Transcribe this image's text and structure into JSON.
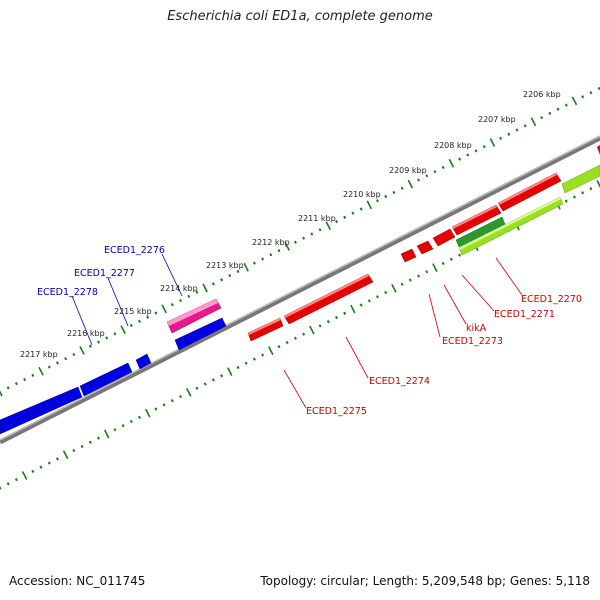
{
  "title": "Escherichia coli ED1a, complete genome",
  "footer": {
    "accession": "Accession: NC_011745",
    "summary": "Topology: circular; Length: 5,209,548 bp; Genes: 5,118"
  },
  "colors": {
    "backbone": "#888888",
    "tick": "#1a7a1a",
    "forward_gene": "#e60000",
    "reverse_gene": "#0000e0",
    "pink_gene": "#e8188a",
    "green_gene": "#2a9a2a",
    "lime_gene": "#99e020",
    "forward_label": "#cc0000",
    "reverse_label": "#0000aa",
    "kbp_label": "#222222"
  },
  "kbp_labels": [
    "2206 kbp",
    "2207 kbp",
    "2208 kbp",
    "2209 kbp",
    "2210 kbp",
    "2211 kbp",
    "2212 kbp",
    "2213 kbp",
    "2214 kbp",
    "2215 kbp",
    "2216 kbp",
    "2217 kbp"
  ],
  "gene_labels": {
    "ECED1_2270": "ECED1_2270",
    "ECED1_2271": "ECED1_2271",
    "kikA": "kikA",
    "ECED1_2273": "ECED1_2273",
    "ECED1_2274": "ECED1_2274",
    "ECED1_2275": "ECED1_2275",
    "ECED1_2276": "ECED1_2276",
    "ECED1_2277": "ECED1_2277",
    "ECED1_2278": "ECED1_2278"
  }
}
